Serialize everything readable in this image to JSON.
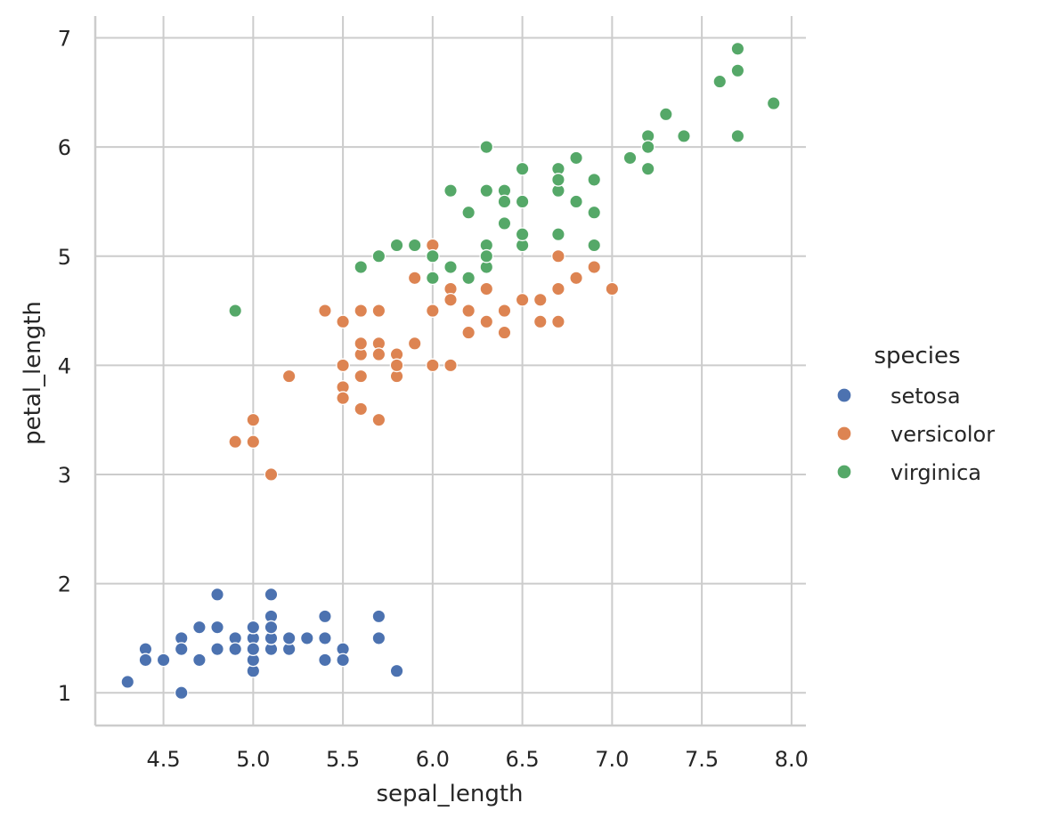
{
  "chart_data": {
    "type": "scatter",
    "xlabel": "sepal_length",
    "ylabel": "petal_length",
    "xlim": [
      4.12,
      8.08
    ],
    "ylim": [
      0.7,
      7.2
    ],
    "xticks": [
      "4.5",
      "5.0",
      "5.5",
      "6.0",
      "6.5",
      "7.0",
      "7.5",
      "8.0"
    ],
    "yticks": [
      "1",
      "2",
      "3",
      "4",
      "5",
      "6",
      "7"
    ],
    "grid": true,
    "legend": {
      "title": "species",
      "placement": "right"
    },
    "series": [
      {
        "name": "setosa",
        "color": "#4c72b0",
        "points": [
          [
            5.1,
            1.4
          ],
          [
            4.9,
            1.4
          ],
          [
            4.7,
            1.3
          ],
          [
            4.6,
            1.5
          ],
          [
            5.0,
            1.4
          ],
          [
            5.4,
            1.7
          ],
          [
            4.6,
            1.4
          ],
          [
            5.0,
            1.5
          ],
          [
            4.4,
            1.4
          ],
          [
            4.9,
            1.5
          ],
          [
            5.4,
            1.5
          ],
          [
            4.8,
            1.6
          ],
          [
            4.8,
            1.4
          ],
          [
            4.3,
            1.1
          ],
          [
            5.8,
            1.2
          ],
          [
            5.7,
            1.5
          ],
          [
            5.4,
            1.3
          ],
          [
            5.1,
            1.4
          ],
          [
            5.7,
            1.7
          ],
          [
            5.1,
            1.5
          ],
          [
            5.4,
            1.7
          ],
          [
            5.1,
            1.5
          ],
          [
            4.6,
            1.0
          ],
          [
            5.1,
            1.7
          ],
          [
            4.8,
            1.9
          ],
          [
            5.0,
            1.6
          ],
          [
            5.0,
            1.6
          ],
          [
            5.2,
            1.5
          ],
          [
            5.2,
            1.4
          ],
          [
            4.7,
            1.6
          ],
          [
            4.8,
            1.6
          ],
          [
            5.4,
            1.5
          ],
          [
            5.2,
            1.5
          ],
          [
            5.5,
            1.4
          ],
          [
            4.9,
            1.5
          ],
          [
            5.0,
            1.2
          ],
          [
            5.5,
            1.3
          ],
          [
            4.9,
            1.4
          ],
          [
            4.4,
            1.3
          ],
          [
            5.1,
            1.5
          ],
          [
            5.0,
            1.3
          ],
          [
            4.5,
            1.3
          ],
          [
            4.4,
            1.3
          ],
          [
            5.0,
            1.6
          ],
          [
            5.1,
            1.9
          ],
          [
            4.8,
            1.4
          ],
          [
            5.1,
            1.6
          ],
          [
            4.6,
            1.4
          ],
          [
            5.3,
            1.5
          ],
          [
            5.0,
            1.4
          ]
        ]
      },
      {
        "name": "versicolor",
        "color": "#dd8452",
        "points": [
          [
            7.0,
            4.7
          ],
          [
            6.4,
            4.5
          ],
          [
            6.9,
            4.9
          ],
          [
            5.5,
            4.0
          ],
          [
            6.5,
            4.6
          ],
          [
            5.7,
            4.5
          ],
          [
            6.3,
            4.7
          ],
          [
            4.9,
            3.3
          ],
          [
            6.6,
            4.6
          ],
          [
            5.2,
            3.9
          ],
          [
            5.0,
            3.5
          ],
          [
            5.9,
            4.2
          ],
          [
            6.0,
            4.0
          ],
          [
            6.1,
            4.7
          ],
          [
            5.6,
            3.6
          ],
          [
            6.7,
            4.4
          ],
          [
            5.6,
            4.5
          ],
          [
            5.8,
            4.1
          ],
          [
            6.2,
            4.5
          ],
          [
            5.6,
            3.9
          ],
          [
            5.9,
            4.8
          ],
          [
            6.1,
            4.0
          ],
          [
            6.3,
            4.9
          ],
          [
            6.1,
            4.7
          ],
          [
            6.4,
            4.3
          ],
          [
            6.6,
            4.4
          ],
          [
            6.8,
            4.8
          ],
          [
            6.7,
            5.0
          ],
          [
            6.0,
            4.5
          ],
          [
            5.7,
            3.5
          ],
          [
            5.5,
            3.8
          ],
          [
            5.5,
            3.7
          ],
          [
            5.8,
            3.9
          ],
          [
            6.0,
            5.1
          ],
          [
            5.4,
            4.5
          ],
          [
            6.0,
            4.5
          ],
          [
            6.7,
            4.7
          ],
          [
            6.3,
            4.4
          ],
          [
            5.6,
            4.1
          ],
          [
            5.5,
            4.0
          ],
          [
            5.5,
            4.4
          ],
          [
            6.1,
            4.6
          ],
          [
            5.8,
            4.0
          ],
          [
            5.0,
            3.3
          ],
          [
            5.6,
            4.2
          ],
          [
            5.7,
            4.2
          ],
          [
            5.7,
            4.2
          ],
          [
            6.2,
            4.3
          ],
          [
            5.1,
            3.0
          ],
          [
            5.7,
            4.1
          ]
        ]
      },
      {
        "name": "virginica",
        "color": "#55a868",
        "points": [
          [
            6.3,
            6.0
          ],
          [
            5.8,
            5.1
          ],
          [
            7.1,
            5.9
          ],
          [
            6.3,
            5.6
          ],
          [
            6.5,
            5.8
          ],
          [
            7.6,
            6.6
          ],
          [
            4.9,
            4.5
          ],
          [
            7.3,
            6.3
          ],
          [
            6.7,
            5.8
          ],
          [
            7.2,
            6.1
          ],
          [
            6.5,
            5.1
          ],
          [
            6.4,
            5.3
          ],
          [
            6.8,
            5.5
          ],
          [
            5.7,
            5.0
          ],
          [
            5.8,
            5.1
          ],
          [
            6.4,
            5.3
          ],
          [
            6.5,
            5.5
          ],
          [
            7.7,
            6.7
          ],
          [
            7.7,
            6.9
          ],
          [
            6.0,
            5.0
          ],
          [
            6.9,
            5.7
          ],
          [
            5.6,
            4.9
          ],
          [
            7.7,
            6.7
          ],
          [
            6.3,
            4.9
          ],
          [
            6.7,
            5.7
          ],
          [
            7.2,
            6.0
          ],
          [
            6.2,
            4.8
          ],
          [
            6.1,
            4.9
          ],
          [
            6.4,
            5.6
          ],
          [
            7.2,
            5.8
          ],
          [
            7.4,
            6.1
          ],
          [
            7.9,
            6.4
          ],
          [
            6.4,
            5.6
          ],
          [
            6.3,
            5.1
          ],
          [
            6.1,
            5.6
          ],
          [
            7.7,
            6.1
          ],
          [
            6.3,
            5.6
          ],
          [
            6.4,
            5.5
          ],
          [
            6.0,
            4.8
          ],
          [
            6.9,
            5.4
          ],
          [
            6.7,
            5.6
          ],
          [
            6.9,
            5.1
          ],
          [
            5.8,
            5.1
          ],
          [
            6.8,
            5.9
          ],
          [
            6.7,
            5.7
          ],
          [
            6.7,
            5.2
          ],
          [
            6.3,
            5.0
          ],
          [
            6.5,
            5.2
          ],
          [
            6.2,
            5.4
          ],
          [
            5.9,
            5.1
          ]
        ]
      }
    ]
  }
}
